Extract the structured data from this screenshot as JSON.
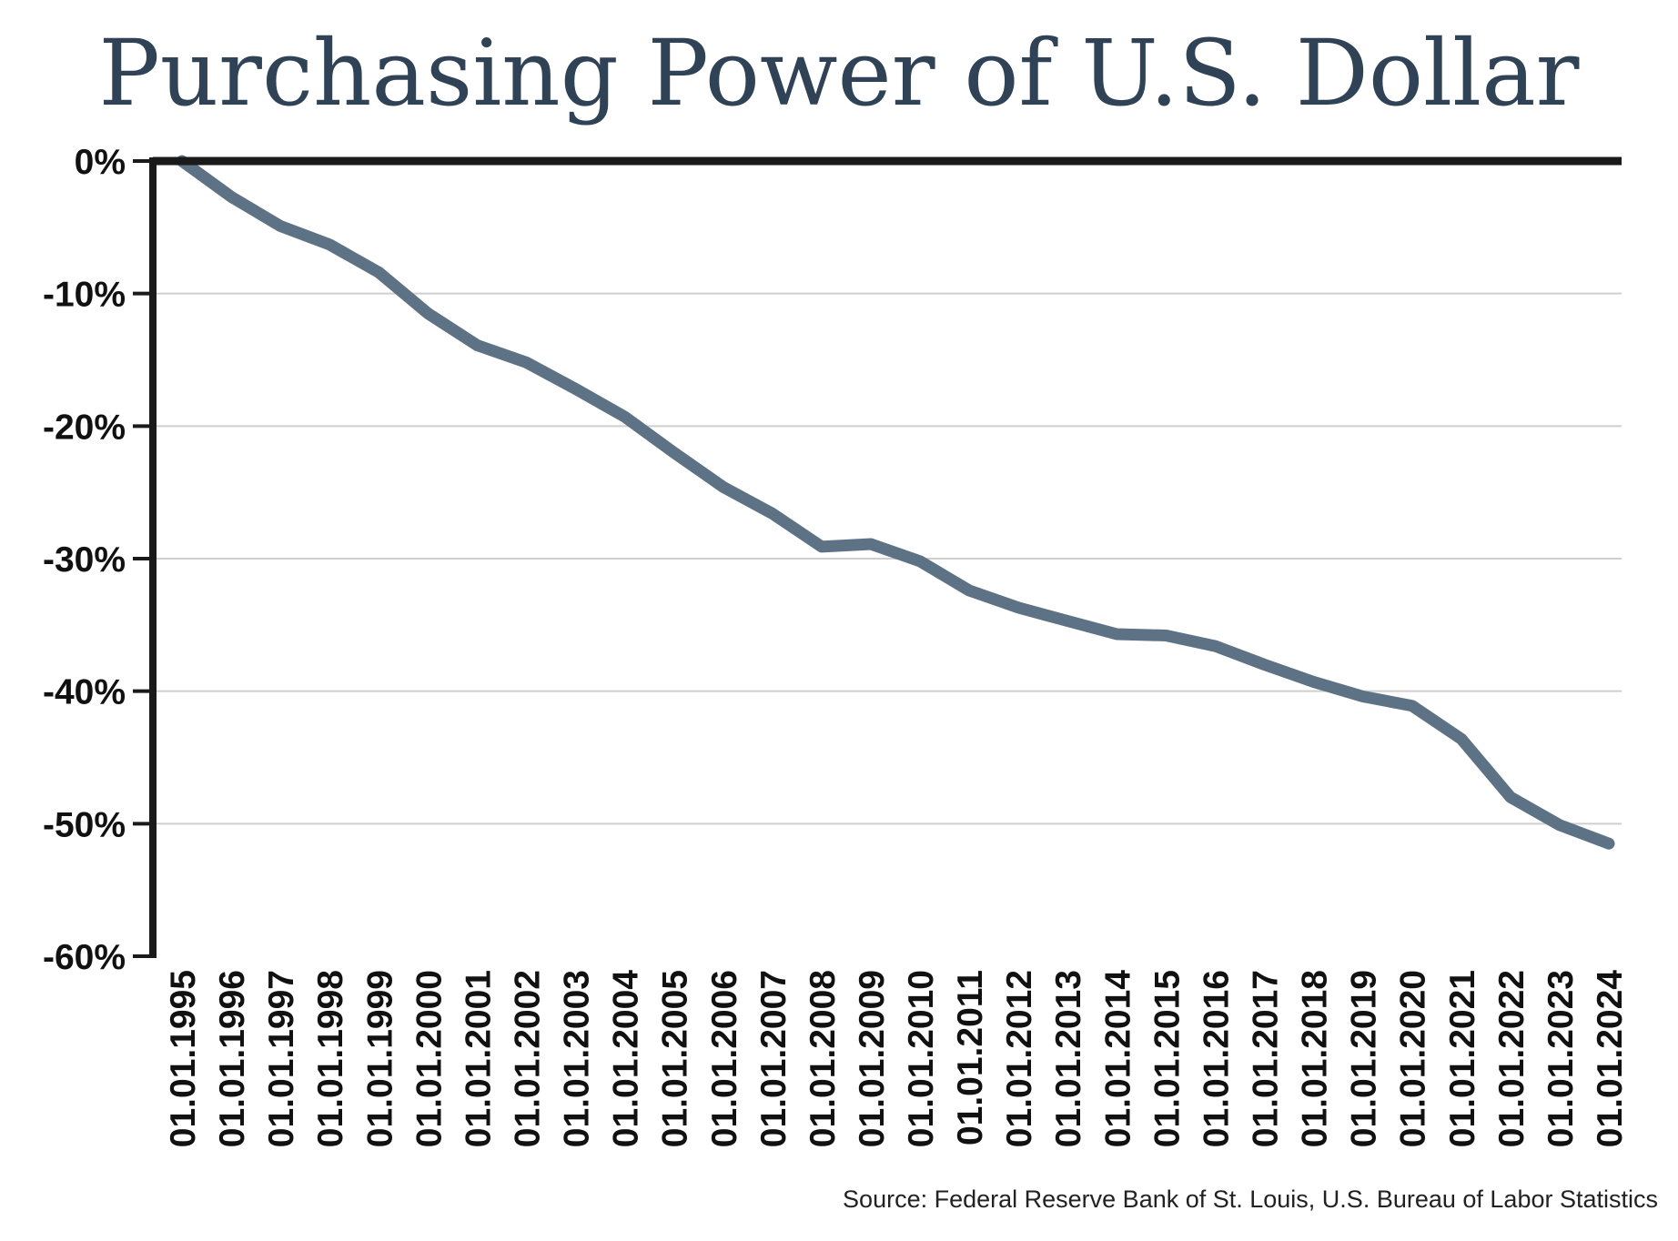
{
  "title": "Purchasing Power of U.S. Dollar",
  "source": "Source: Federal Reserve Bank of St. Louis, U.S. Bureau of Labor Statistics",
  "colors": {
    "line": "#5e7285",
    "axis": "#1a1a1a",
    "grid": "#cfcfcf",
    "title": "#2f4256"
  },
  "chart_data": {
    "type": "line",
    "title": "Purchasing Power of U.S. Dollar",
    "xlabel": "",
    "ylabel": "",
    "ylim": [
      -60,
      0
    ],
    "yticks": [
      0,
      -10,
      -20,
      -30,
      -40,
      -50,
      -60
    ],
    "ytick_labels": [
      "0%",
      "-10%",
      "-20%",
      "-30%",
      "-40%",
      "-50%",
      "-60%"
    ],
    "grid": true,
    "categories": [
      "01.01.1995",
      "01.01.1996",
      "01.01.1997",
      "01.01.1998",
      "01.01.1999",
      "01.01.2000",
      "01.01.2001",
      "01.01.2002",
      "01.01.2003",
      "01.01.2004",
      "01.01.2005",
      "01.01.2006",
      "01.01.2007",
      "01.01.2008",
      "01.01.2009",
      "01.01.2010",
      "01.01.2011",
      "01.01.2012",
      "01.01.2013",
      "01.01.2014",
      "01.01.2015",
      "01.01.2016",
      "01.01.2017",
      "01.01.2018",
      "01.01.2019",
      "01.01.2020",
      "01.01.2021",
      "01.01.2022",
      "01.01.2023",
      "01.01.2024"
    ],
    "series": [
      {
        "values": [
          0,
          -2.7,
          -4.9,
          -6.3,
          -8.4,
          -11.5,
          -13.9,
          -15.2,
          -17.2,
          -19.3,
          -22.0,
          -24.6,
          -26.6,
          -29.1,
          -28.9,
          -30.2,
          -32.4,
          -33.7,
          -34.7,
          -35.7,
          -35.8,
          -36.6,
          -38.0,
          -39.3,
          -40.4,
          -41.1,
          -43.6,
          -48.0,
          -50.1,
          -51.5
        ]
      }
    ]
  }
}
